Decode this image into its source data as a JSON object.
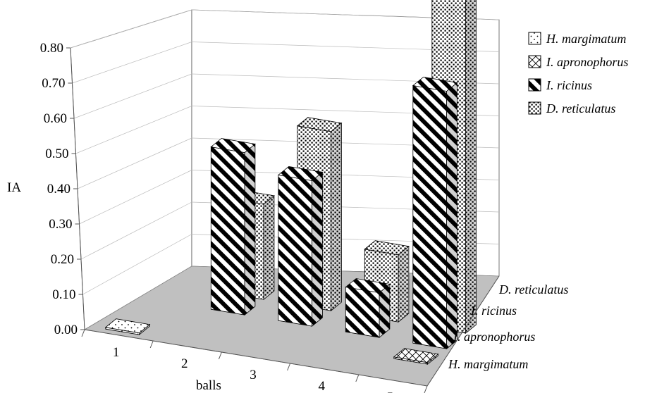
{
  "chart_data": {
    "type": "bar",
    "categories": [
      "1",
      "2",
      "3",
      "4",
      "5"
    ],
    "xlabel": "balls",
    "ylabel": "IA",
    "ylim": [
      0,
      0.8
    ],
    "yticks": [
      "0.00",
      "0.10",
      "0.20",
      "0.30",
      "0.40",
      "0.50",
      "0.60",
      "0.70",
      "0.80"
    ],
    "grid": true,
    "legend_position": "top-right",
    "series": [
      {
        "name": "H. margimatum",
        "values": [
          0.003,
          0,
          0,
          0,
          0
        ],
        "pattern": "sparse-dots"
      },
      {
        "name": "I. apronophorus",
        "values": [
          0,
          0,
          0,
          0,
          0.003
        ],
        "pattern": "cross-hatch"
      },
      {
        "name": "I. ricinus",
        "values": [
          0,
          0.29,
          0.26,
          0.08,
          0.02
        ],
        "pattern": "diagonal-stripes",
        "extra": {
          "index": 4,
          "value": 0.46
        }
      },
      {
        "name": "D. reticulatus",
        "values": [
          0,
          0.17,
          0.32,
          0.12,
          0.06
        ],
        "pattern": "dense-dots",
        "extra": {
          "index": 4,
          "value": 0.66
        }
      }
    ],
    "depth_labels": [
      "H. margimatum",
      "I. apronophorus",
      "I. ricinus",
      "D. reticulatus"
    ]
  }
}
